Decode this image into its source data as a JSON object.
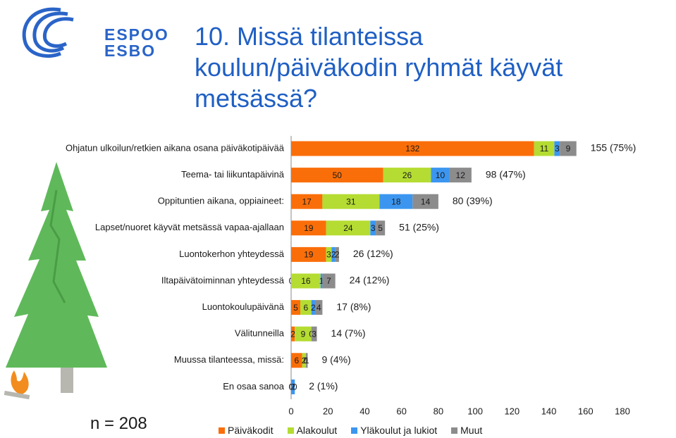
{
  "header": {
    "logo_line1": "ESPOO",
    "logo_line2": "ESBO",
    "title_lines": [
      "10. Missä tilanteissa",
      "koulun/päiväkodin ryhmät käyvät",
      "metsässä?"
    ]
  },
  "sample_size": "n = 208",
  "colors": {
    "paivakodit": "#fa6e0a",
    "alakoulut": "#b4dc32",
    "ylakoulut": "#3c96f0",
    "muut": "#8c8c8c",
    "title": "#1f5fc4"
  },
  "chart_data": {
    "type": "bar",
    "orientation": "horizontal",
    "stacked": true,
    "categories": [
      "Ohjatun ulkoilun/retkien aikana osana päiväkotipäivää",
      "Teema- tai liikuntapäivinä",
      "Oppituntien aikana, oppiaineet:",
      "Lapset/nuoret käyvät metsässä vapaa-ajallaan",
      "Luontokerhon yhteydessä",
      "Iltapäivätoiminnan yhteydessä",
      "Luontokoulupäivänä",
      "Välitunneilla",
      "Muussa tilanteessa, missä:",
      "En osaa sanoa"
    ],
    "series": [
      {
        "name": "Päiväkodit",
        "values": [
          132,
          50,
          17,
          19,
          19,
          0,
          5,
          2,
          6,
          0
        ]
      },
      {
        "name": "Alakoulut",
        "values": [
          11,
          26,
          31,
          24,
          3,
          16,
          6,
          9,
          2,
          0
        ]
      },
      {
        "name": "Yläkoulut ja lukiot",
        "values": [
          3,
          10,
          18,
          3,
          2,
          1,
          2,
          0,
          0,
          2
        ]
      },
      {
        "name": "Muut",
        "values": [
          9,
          12,
          14,
          5,
          2,
          7,
          4,
          3,
          1,
          0
        ]
      }
    ],
    "totals": [
      "155 (75%)",
      "98 (47%)",
      "80 (39%)",
      "51 (25%)",
      "26 (12%)",
      "24 (12%)",
      "17 (8%)",
      "14 (7%)",
      "9 (4%)",
      "2 (1%)"
    ],
    "xlim": [
      0,
      180
    ],
    "xticks": [
      0,
      20,
      40,
      60,
      80,
      100,
      120,
      140,
      160,
      180
    ],
    "legend_position": "bottom",
    "grid": false
  }
}
